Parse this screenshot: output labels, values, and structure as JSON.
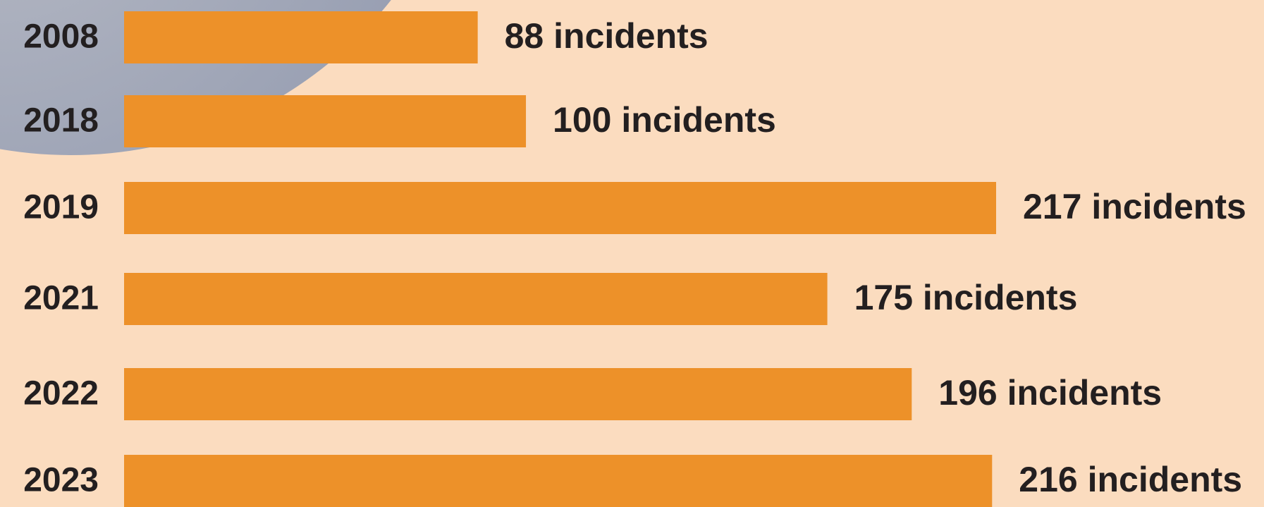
{
  "chart_data": {
    "type": "bar",
    "orientation": "horizontal",
    "categories": [
      "2008",
      "2018",
      "2019",
      "2021",
      "2022",
      "2023"
    ],
    "values": [
      88,
      100,
      217,
      175,
      196,
      216
    ],
    "value_labels": [
      "88 incidents",
      "100 incidents",
      "217 incidents",
      "175 incidents",
      "196 incidents",
      "216 incidents"
    ],
    "color": "#ed9129"
  }
}
